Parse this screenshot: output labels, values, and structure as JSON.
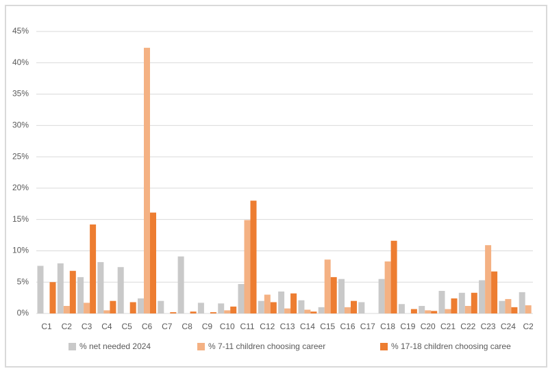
{
  "chart_data": {
    "type": "bar",
    "categories": [
      "C1",
      "C2",
      "C3",
      "C4",
      "C5",
      "C6",
      "C7",
      "C8",
      "C9",
      "C10",
      "C11",
      "C12",
      "C13",
      "C14",
      "C15",
      "C16",
      "C17",
      "C18",
      "C19",
      "C20",
      "C21",
      "C22",
      "C23",
      "C24",
      "C2"
    ],
    "series": [
      {
        "name": "% net needed 2024",
        "color": "#c9c9c9",
        "values": [
          7.6,
          8.0,
          5.8,
          8.2,
          7.4,
          2.4,
          2.0,
          9.1,
          1.7,
          1.6,
          4.7,
          2.0,
          3.5,
          2.1,
          1.0,
          5.5,
          1.8,
          5.5,
          1.5,
          1.2,
          3.6,
          3.3,
          5.3,
          2.0,
          3.4
        ]
      },
      {
        "name": "% 7-11 children choosing career",
        "color": "#f4b183",
        "values": [
          0,
          1.2,
          1.7,
          0.5,
          0,
          42.4,
          0,
          0,
          0,
          0.5,
          14.9,
          3.0,
          0.8,
          0.6,
          8.6,
          1.0,
          0,
          8.3,
          0,
          0.5,
          0.7,
          1.2,
          10.9,
          2.3,
          1.3
        ]
      },
      {
        "name": "% 17-18 children choosing caree",
        "color": "#ed7d31",
        "values": [
          5.0,
          6.8,
          14.2,
          2.0,
          1.8,
          16.1,
          0.2,
          0.3,
          0.2,
          1.1,
          18.0,
          1.8,
          3.2,
          0.3,
          5.8,
          2.0,
          0,
          11.6,
          0.7,
          0.4,
          2.4,
          3.3,
          6.7,
          1.0,
          null
        ]
      }
    ],
    "ylim": [
      0,
      45
    ],
    "yticks": [
      {
        "value": 0,
        "label": "0%"
      },
      {
        "value": 5,
        "label": "5%"
      },
      {
        "value": 10,
        "label": "10%"
      },
      {
        "value": 15,
        "label": "15%"
      },
      {
        "value": 20,
        "label": "20%"
      },
      {
        "value": 25,
        "label": "25%"
      },
      {
        "value": 30,
        "label": "30%"
      },
      {
        "value": 35,
        "label": "35%"
      },
      {
        "value": 40,
        "label": "40%"
      },
      {
        "value": 45,
        "label": "45%"
      }
    ],
    "grid": true,
    "legend": "bottom"
  }
}
